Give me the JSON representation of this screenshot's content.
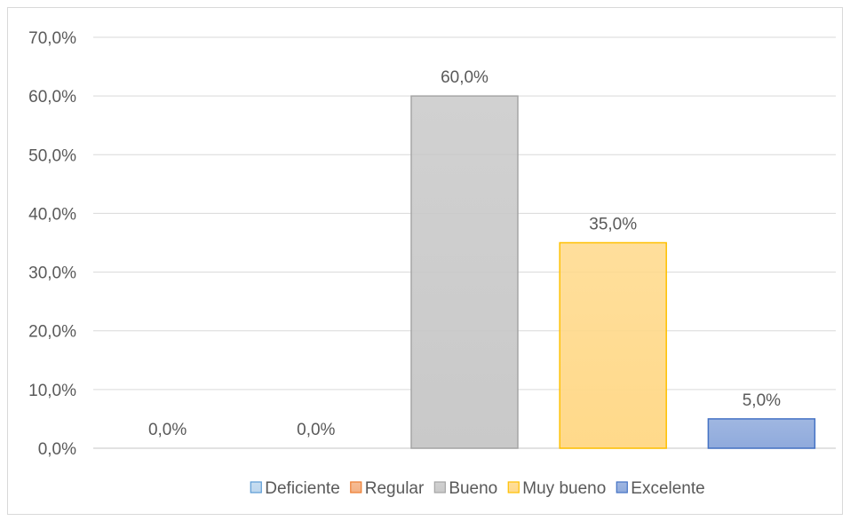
{
  "chart_data": {
    "type": "bar",
    "categories": [
      "Deficiente",
      "Regular",
      "Bueno",
      "Muy bueno",
      "Excelente"
    ],
    "values": [
      0.0,
      0.0,
      60.0,
      35.0,
      5.0
    ],
    "data_labels": [
      "0,0%",
      "0,0%",
      "60,0%",
      "35,0%",
      "5,0%"
    ],
    "ylim": [
      0,
      70
    ],
    "yticks": [
      0,
      10,
      20,
      30,
      40,
      50,
      60,
      70
    ],
    "ytick_labels": [
      "0,0%",
      "10,0%",
      "20,0%",
      "30,0%",
      "40,0%",
      "50,0%",
      "60,0%",
      "70,0%"
    ],
    "grid": true,
    "legend_position": "bottom",
    "colors": {
      "fill": [
        "#bdd7ee",
        "#f4b183",
        "#c9c9c9",
        "#ffd98a",
        "#8faadc"
      ],
      "stroke": [
        "#5b9bd5",
        "#ed7d31",
        "#a5a5a5",
        "#ffc000",
        "#4472c4"
      ]
    }
  }
}
